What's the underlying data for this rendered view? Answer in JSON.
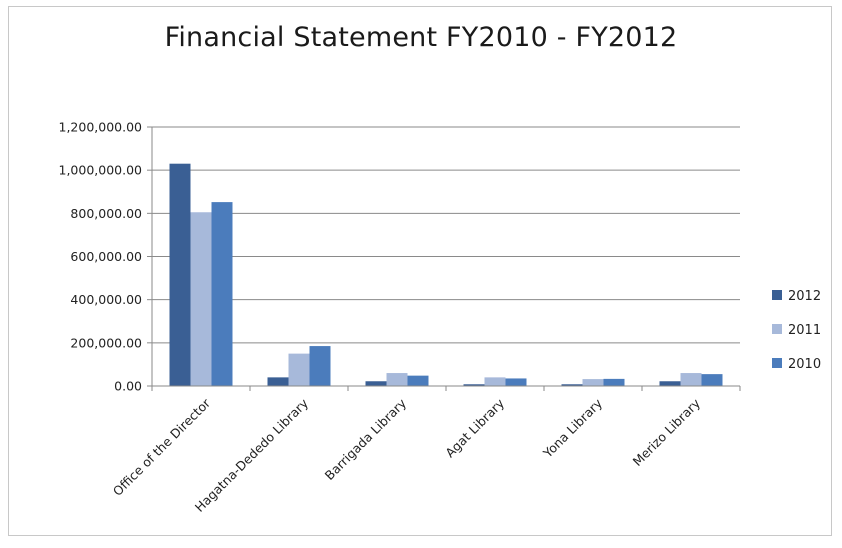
{
  "chart_data": {
    "type": "bar",
    "title": "Financial Statement FY2010 - FY2012",
    "categories": [
      "Office of the Director",
      "Hagatna-Dededo Library",
      "Barrigada Library",
      "Agat Library",
      "Yona Library",
      "Merizo Library"
    ],
    "series": [
      {
        "name": "2012",
        "color": "#3a5f94",
        "values": [
          1030000,
          40000,
          22000,
          8000,
          8000,
          22000
        ]
      },
      {
        "name": "2011",
        "color": "#a7b9da",
        "values": [
          805000,
          150000,
          60000,
          40000,
          32000,
          60000
        ]
      },
      {
        "name": "2010",
        "color": "#4b7cbc",
        "values": [
          852000,
          185000,
          48000,
          35000,
          33000,
          55000
        ]
      }
    ],
    "ylim": [
      0,
      1200000
    ],
    "yticks": [
      0,
      200000,
      400000,
      600000,
      800000,
      1000000,
      1200000
    ],
    "ytick_labels": [
      "0.00",
      "200,000.00",
      "400,000.00",
      "600,000.00",
      "800,000.00",
      "1,000,000.00",
      "1,200,000.00"
    ],
    "grid": true,
    "legend_position": "right"
  }
}
